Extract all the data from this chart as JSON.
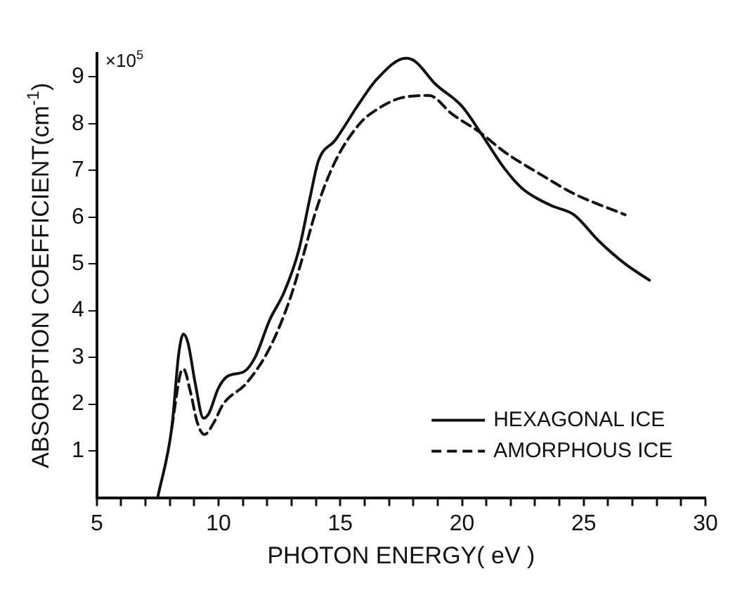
{
  "chart_data": {
    "type": "line",
    "xlabel": "PHOTON ENERGY( eV )",
    "ylabel": "ABSORPTION COEFFICIENT(cm$^{-1}$)",
    "annotations": [
      "×10$^{5}$"
    ],
    "xlim": [
      5,
      30
    ],
    "xticks": [
      5,
      {
        "value": 6,
        "label": null
      },
      {
        "value": 7,
        "label": null
      },
      {
        "value": 8,
        "label": null
      },
      {
        "value": 9,
        "label": null
      },
      10,
      {
        "value": 11,
        "label": null
      },
      {
        "value": 12,
        "label": null
      },
      {
        "value": 13,
        "label": null
      },
      {
        "value": 14,
        "label": null
      },
      15,
      {
        "value": 16,
        "label": null
      },
      {
        "value": 17,
        "label": null
      },
      {
        "value": 18,
        "label": null
      },
      {
        "value": 19,
        "label": null
      },
      20,
      {
        "value": 21,
        "label": null
      },
      {
        "value": 22,
        "label": null
      },
      {
        "value": 23,
        "label": null
      },
      {
        "value": 24,
        "label": null
      },
      25,
      {
        "value": 26,
        "label": null
      },
      {
        "value": 27,
        "label": null
      },
      {
        "value": 28,
        "label": null
      },
      {
        "value": 29,
        "label": null
      },
      30
    ],
    "ylim": [
      0,
      9.5
    ],
    "yticks": [
      1,
      2,
      3,
      4,
      5,
      6,
      7,
      8,
      9
    ],
    "grid": false,
    "legend": "bottom right",
    "marker": "none",
    "series": [
      {
        "name": "HEXAGONAL ICE",
        "color": "#111111",
        "line_style": "solid",
        "x": [
          7.5,
          8.08,
          8.37,
          8.56,
          8.75,
          9.04,
          9.38,
          9.6,
          10.0,
          10.38,
          11.06,
          11.5,
          12.1,
          12.7,
          13.3,
          13.75,
          14.1,
          14.8,
          15.8,
          16.5,
          17.7,
          18.08,
          18.9,
          20.0,
          20.77,
          21.73,
          22.5,
          23.65,
          24.6,
          25.6,
          26.7,
          27.7
        ],
        "values": [
          0,
          1.5,
          3.1,
          3.5,
          3.3,
          2.45,
          1.7,
          1.8,
          2.35,
          2.6,
          2.7,
          3.0,
          3.8,
          4.4,
          5.3,
          6.4,
          7.2,
          7.65,
          8.45,
          8.95,
          9.4,
          9.33,
          8.85,
          8.37,
          7.8,
          7.05,
          6.6,
          6.25,
          6.05,
          5.5,
          5.0,
          4.65
        ]
      },
      {
        "name": "AMORPHOUS ICE",
        "color": "#111111",
        "line_style": "dashed",
        "x": [
          8.08,
          8.46,
          8.56,
          8.85,
          9.13,
          9.42,
          9.8,
          10.19,
          11.15,
          12.1,
          12.9,
          13.46,
          14.04,
          14.8,
          15.8,
          16.5,
          17.5,
          18.65,
          19.6,
          20.77,
          21.73,
          23.27,
          24.6,
          26.7
        ],
        "values": [
          1.5,
          2.7,
          2.75,
          2.25,
          1.6,
          1.35,
          1.6,
          2.0,
          2.45,
          3.2,
          4.2,
          5.15,
          6.2,
          7.2,
          8.0,
          8.3,
          8.55,
          8.6,
          8.2,
          7.8,
          7.4,
          6.9,
          6.5,
          6.05
        ]
      }
    ]
  }
}
